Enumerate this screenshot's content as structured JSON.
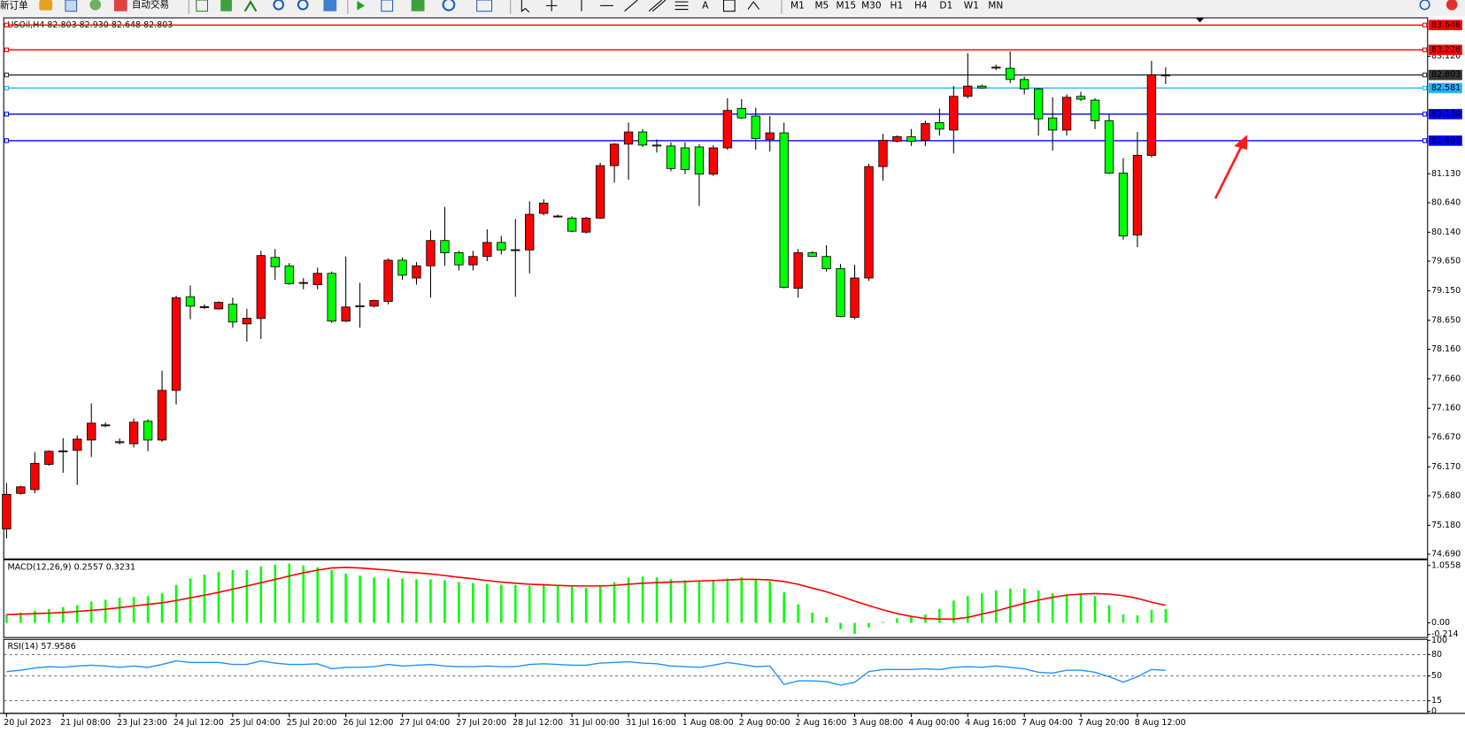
{
  "toolbar": {
    "new_order": "新订单",
    "auto_trade": "自动交易",
    "text_tool": "A",
    "timeframes": [
      "M1",
      "M5",
      "M15",
      "M30",
      "H1",
      "H4",
      "D1",
      "W1",
      "MN"
    ]
  },
  "chart_data": [
    {
      "type": "candlestick",
      "legend": "USOil,H4 82.803 82.930 82.648 82.803",
      "categories": [
        "20 Jul 2023",
        null,
        null,
        null,
        "21 Jul 08:00",
        null,
        null,
        null,
        "23 Jul 23:00",
        null,
        null,
        null,
        "24 Jul 12:00",
        null,
        null,
        null,
        "25 Jul 04:00",
        null,
        null,
        null,
        "25 Jul 20:00",
        null,
        null,
        null,
        "26 Jul 12:00",
        null,
        null,
        null,
        "27 Jul 04:00",
        null,
        null,
        null,
        "27 Jul 20:00",
        null,
        null,
        null,
        "28 Jul 12:00",
        null,
        null,
        null,
        "31 Jul 00:00",
        null,
        null,
        null,
        "31 Jul 16:00",
        null,
        null,
        null,
        "1 Aug 08:00",
        null,
        null,
        null,
        "2 Aug 00:00",
        null,
        null,
        null,
        "2 Aug 16:00",
        null,
        null,
        null,
        "3 Aug 08:00",
        null,
        null,
        null,
        "4 Aug 00:00",
        null,
        null,
        null,
        "4 Aug 16:00",
        null,
        null,
        null,
        "7 Aug 04:00",
        null,
        null,
        null,
        "7 Aug 20:00",
        null,
        null,
        null,
        "8 Aug 12:00",
        null,
        null
      ],
      "open": [
        75.118,
        75.72,
        75.784,
        76.211,
        76.433,
        76.449,
        76.624,
        76.877,
        76.592,
        76.56,
        76.941,
        76.624,
        77.464,
        79.049,
        78.875,
        78.842,
        78.921,
        78.589,
        78.684,
        79.714,
        79.572,
        79.286,
        79.254,
        79.445,
        78.636,
        78.89,
        78.89,
        78.97,
        79.667,
        79.366,
        79.572,
        80.0,
        79.794,
        79.588,
        79.73,
        79.968,
        79.841,
        79.841,
        80.459,
        80.412,
        80.38,
        80.142,
        80.38,
        81.268,
        81.632,
        81.838,
        81.616,
        81.601,
        81.569,
        81.585,
        81.125,
        81.569,
        82.235,
        82.108,
        81.712,
        81.823,
        79.191,
        79.794,
        79.73,
        79.524,
        78.7,
        79.366,
        81.252,
        81.68,
        81.759,
        81.696,
        81.997,
        81.87,
        82.441,
        82.615,
        82.932,
        82.916,
        82.726,
        82.567,
        82.076,
        81.87,
        82.441,
        82.377,
        82.029,
        81.141,
        80.095,
        81.442,
        82.803
      ],
      "high": [
        75.894,
        75.85,
        76.418,
        76.45,
        76.655,
        76.703,
        77.242,
        76.92,
        76.65,
        76.988,
        76.972,
        77.797,
        79.065,
        79.239,
        78.92,
        78.97,
        79.033,
        78.842,
        79.825,
        79.857,
        79.619,
        79.365,
        79.54,
        79.476,
        79.73,
        79.286,
        79.0,
        79.699,
        79.714,
        79.635,
        80.174,
        80.57,
        79.825,
        79.825,
        80.19,
        80.079,
        80.364,
        80.665,
        80.697,
        80.44,
        80.41,
        80.4,
        81.315,
        81.648,
        81.997,
        81.886,
        81.712,
        81.664,
        81.664,
        81.632,
        81.616,
        82.409,
        82.393,
        82.25,
        82.108,
        81.997,
        79.857,
        79.82,
        79.921,
        79.604,
        79.588,
        81.299,
        81.807,
        81.78,
        81.886,
        82.029,
        82.235,
        82.615,
        83.17,
        82.64,
        82.98,
        83.201,
        82.774,
        82.583,
        82.425,
        82.472,
        82.52,
        82.409,
        82.14,
        81.395,
        81.838,
        83.043,
        82.93
      ],
      "low": [
        74.959,
        75.7,
        75.72,
        76.19,
        76.069,
        75.863,
        76.338,
        76.84,
        76.55,
        76.497,
        76.433,
        76.592,
        77.226,
        78.668,
        78.84,
        78.83,
        78.525,
        78.288,
        78.335,
        79.334,
        79.254,
        79.175,
        79.175,
        78.605,
        78.62,
        78.525,
        78.87,
        78.921,
        79.334,
        79.254,
        79.033,
        79.572,
        79.493,
        79.493,
        79.651,
        79.765,
        79.049,
        79.445,
        80.428,
        80.39,
        80.14,
        80.12,
        80.364,
        80.982,
        81.03,
        81.585,
        81.49,
        81.173,
        81.125,
        80.586,
        81.093,
        81.537,
        82.06,
        81.537,
        81.506,
        79.191,
        79.033,
        79.72,
        79.476,
        78.7,
        78.668,
        79.318,
        81.014,
        81.66,
        81.601,
        81.601,
        81.775,
        81.474,
        82.409,
        82.57,
        82.884,
        82.663,
        82.472,
        81.775,
        81.521,
        81.775,
        82.361,
        81.886,
        81.125,
        80.016,
        79.889,
        81.41,
        82.648
      ],
      "close": [
        75.704,
        75.831,
        76.227,
        76.433,
        76.44,
        76.639,
        76.909,
        76.88,
        76.595,
        76.925,
        76.624,
        77.464,
        79.033,
        78.89,
        78.88,
        78.953,
        78.62,
        78.684,
        79.746,
        79.556,
        79.27,
        79.29,
        79.445,
        78.636,
        78.875,
        78.895,
        78.985,
        79.667,
        79.413,
        79.572,
        80.0,
        79.794,
        79.588,
        79.73,
        79.968,
        79.841,
        79.845,
        80.444,
        80.634,
        80.415,
        80.158,
        80.38,
        81.268,
        81.632,
        81.838,
        81.616,
        81.61,
        81.22,
        81.204,
        81.125,
        81.569,
        82.203,
        82.076,
        81.727,
        81.823,
        79.207,
        79.794,
        79.73,
        79.524,
        78.716,
        79.366,
        81.252,
        81.696,
        81.759,
        81.68,
        81.981,
        81.886,
        82.441,
        82.615,
        82.583,
        82.935,
        82.726,
        82.567,
        82.06,
        81.87,
        82.425,
        82.393,
        82.029,
        81.141,
        80.079,
        81.442,
        82.805,
        82.803
      ],
      "up_color": "#ff0000",
      "down_color": "#00ff00",
      "ylim": [
        74.627,
        83.755
      ],
      "yticks": [
        {
          "value": 74.69,
          "label": "74.690"
        },
        {
          "value": 75.18,
          "label": "75.180"
        },
        {
          "value": 75.68,
          "label": "75.680"
        },
        {
          "value": 76.17,
          "label": "76.170"
        },
        {
          "value": 76.67,
          "label": "76.670"
        },
        {
          "value": 77.16,
          "label": "77.160"
        },
        {
          "value": 77.66,
          "label": "77.660"
        },
        {
          "value": 78.16,
          "label": "78.160"
        },
        {
          "value": 78.65,
          "label": "78.650"
        },
        {
          "value": 79.15,
          "label": "79.150"
        },
        {
          "value": 79.65,
          "label": "79.650"
        },
        {
          "value": 80.14,
          "label": "80.140"
        },
        {
          "value": 80.64,
          "label": "80.640"
        },
        {
          "value": 81.13,
          "label": "81.130"
        },
        {
          "value": 83.12,
          "label": "83.120"
        }
      ],
      "hlines": [
        {
          "value": 83.648,
          "label": "83.648",
          "color": "#ff0000"
        },
        {
          "value": 83.228,
          "label": "83.228",
          "color": "#ff0000"
        },
        {
          "value": 82.803,
          "label": "82.803",
          "color": "#333333"
        },
        {
          "value": 82.581,
          "label": "82.581",
          "color": "#1eb4ff"
        },
        {
          "value": 82.14,
          "label": "82.140",
          "color": "#0000ff"
        },
        {
          "value": 81.691,
          "label": "81.691",
          "color": "#0000ff"
        }
      ]
    },
    {
      "type": "macd",
      "legend": "MACD(12,26,9) 0.2557 0.3231",
      "color": "#00ff00",
      "signal_color": "#ff0000",
      "values": [
        0.153,
        0.187,
        0.221,
        0.256,
        0.29,
        0.324,
        0.392,
        0.426,
        0.46,
        0.477,
        0.494,
        0.545,
        0.698,
        0.818,
        0.886,
        0.937,
        0.971,
        0.971,
        1.039,
        1.073,
        1.09,
        1.056,
        1.022,
        0.971,
        0.903,
        0.869,
        0.835,
        0.818,
        0.818,
        0.801,
        0.801,
        0.784,
        0.75,
        0.733,
        0.716,
        0.698,
        0.698,
        0.681,
        0.698,
        0.681,
        0.664,
        0.647,
        0.681,
        0.75,
        0.835,
        0.852,
        0.835,
        0.801,
        0.784,
        0.767,
        0.767,
        0.818,
        0.835,
        0.801,
        0.767,
        0.562,
        0.341,
        0.187,
        0.102,
        -0.119,
        -0.204,
        -0.085,
        0.017,
        0.085,
        0.119,
        0.153,
        0.256,
        0.409,
        0.494,
        0.545,
        0.596,
        0.63,
        0.63,
        0.596,
        0.545,
        0.528,
        0.528,
        0.494,
        0.324,
        0.153,
        0.136,
        0.238,
        0.2557
      ],
      "signal": [
        0.15,
        0.16,
        0.17,
        0.18,
        0.19,
        0.21,
        0.23,
        0.25,
        0.28,
        0.31,
        0.34,
        0.37,
        0.41,
        0.46,
        0.51,
        0.56,
        0.62,
        0.68,
        0.74,
        0.8,
        0.86,
        0.92,
        0.97,
        1.01,
        1.02,
        1.01,
        0.99,
        0.97,
        0.94,
        0.92,
        0.9,
        0.87,
        0.84,
        0.81,
        0.78,
        0.75,
        0.73,
        0.71,
        0.7,
        0.69,
        0.68,
        0.68,
        0.68,
        0.69,
        0.71,
        0.73,
        0.74,
        0.75,
        0.76,
        0.77,
        0.78,
        0.79,
        0.8,
        0.8,
        0.79,
        0.76,
        0.71,
        0.64,
        0.57,
        0.49,
        0.4,
        0.32,
        0.24,
        0.17,
        0.12,
        0.08,
        0.07,
        0.07,
        0.1,
        0.16,
        0.22,
        0.29,
        0.36,
        0.42,
        0.47,
        0.51,
        0.53,
        0.54,
        0.53,
        0.5,
        0.45,
        0.38,
        0.3231
      ],
      "ylim": [
        -0.27,
        1.16
      ],
      "yticks": [
        1.0558,
        {
          "value": 0,
          "label": "0.00"
        },
        -0.214
      ]
    },
    {
      "type": "line",
      "legend": "RSI(14) 57.9586",
      "color": "#1e90ff",
      "values": [
        56,
        58,
        61,
        63,
        62,
        64,
        65,
        64,
        62,
        64,
        62,
        66,
        71,
        69,
        69,
        69,
        66,
        66,
        71,
        68,
        66,
        66,
        67,
        60,
        62,
        62,
        63,
        66,
        64,
        65,
        66,
        64,
        63,
        63,
        64,
        63,
        63,
        66,
        67,
        66,
        65,
        65,
        68,
        69,
        70,
        68,
        67,
        64,
        63,
        62,
        65,
        69,
        66,
        63,
        64,
        38,
        43,
        43,
        42,
        37,
        41,
        56,
        59,
        59,
        59,
        60,
        59,
        62,
        63,
        62,
        64,
        62,
        60,
        55,
        54,
        58,
        58,
        55,
        49,
        41,
        49,
        59,
        57.9586
      ],
      "ylim": [
        0,
        100
      ],
      "yticks": [
        0,
        15,
        50,
        80,
        100
      ],
      "grid": "dashed"
    }
  ]
}
